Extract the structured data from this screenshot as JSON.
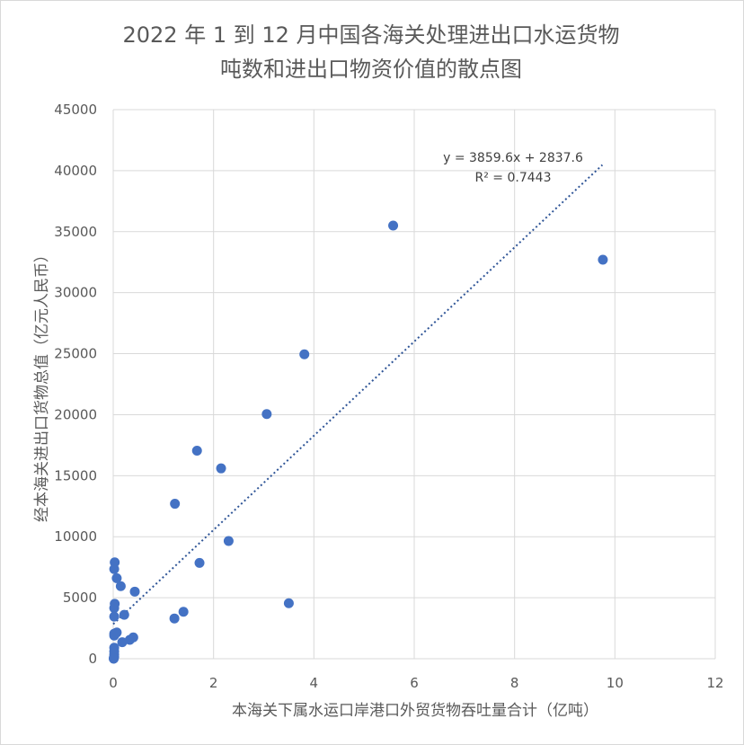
{
  "chart_data": {
    "type": "scatter",
    "title": [
      "2022 年 1 到 12 月中国各海关处理进出口水运货物",
      "吨数和进出口物资价值的散点图"
    ],
    "xlabel": "本海关下属水运口岸港口外贸货物吞吐量合计（亿吨）",
    "ylabel": "经本海关进出口货物总值（亿元人民币）",
    "xlim": [
      0,
      12
    ],
    "ylim": [
      0,
      45000
    ],
    "x_ticks": [
      0,
      2,
      4,
      6,
      8,
      10,
      12
    ],
    "y_ticks": [
      0,
      5000,
      10000,
      15000,
      20000,
      25000,
      30000,
      35000,
      40000,
      45000
    ],
    "grid": true,
    "colors": {
      "points": "#4472c4",
      "trendline": "#2f5597"
    },
    "trendline": {
      "type": "linear",
      "slope": 3859.6,
      "intercept": 2837.6,
      "x_range": [
        0,
        9.75
      ],
      "equation_label": "y = 3859.6x + 2837.6",
      "r2_label": "R² = 0.7443"
    },
    "points": [
      {
        "x": 5.58,
        "y": 35500
      },
      {
        "x": 9.76,
        "y": 32700
      },
      {
        "x": 3.81,
        "y": 24950
      },
      {
        "x": 3.06,
        "y": 20050
      },
      {
        "x": 1.67,
        "y": 17050
      },
      {
        "x": 2.15,
        "y": 15600
      },
      {
        "x": 1.23,
        "y": 12700
      },
      {
        "x": 2.3,
        "y": 9650
      },
      {
        "x": 1.72,
        "y": 7850
      },
      {
        "x": 3.5,
        "y": 4550
      },
      {
        "x": 1.4,
        "y": 3850
      },
      {
        "x": 1.22,
        "y": 3300
      },
      {
        "x": 0.43,
        "y": 5500
      },
      {
        "x": 0.22,
        "y": 3600
      },
      {
        "x": 0.15,
        "y": 5950
      },
      {
        "x": 0.07,
        "y": 6600
      },
      {
        "x": 0.03,
        "y": 7900
      },
      {
        "x": 0.02,
        "y": 7350
      },
      {
        "x": 0.03,
        "y": 4500
      },
      {
        "x": 0.02,
        "y": 4150
      },
      {
        "x": 0.02,
        "y": 3450
      },
      {
        "x": 0.07,
        "y": 2150
      },
      {
        "x": 0.02,
        "y": 2050
      },
      {
        "x": 0.02,
        "y": 1900
      },
      {
        "x": 0.4,
        "y": 1750
      },
      {
        "x": 0.33,
        "y": 1550
      },
      {
        "x": 0.18,
        "y": 1350
      },
      {
        "x": 0.02,
        "y": 900
      },
      {
        "x": 0.02,
        "y": 600
      },
      {
        "x": 0.02,
        "y": 350
      },
      {
        "x": 0.02,
        "y": 150
      },
      {
        "x": 0.01,
        "y": 50
      },
      {
        "x": 0.01,
        "y": 0
      }
    ]
  }
}
